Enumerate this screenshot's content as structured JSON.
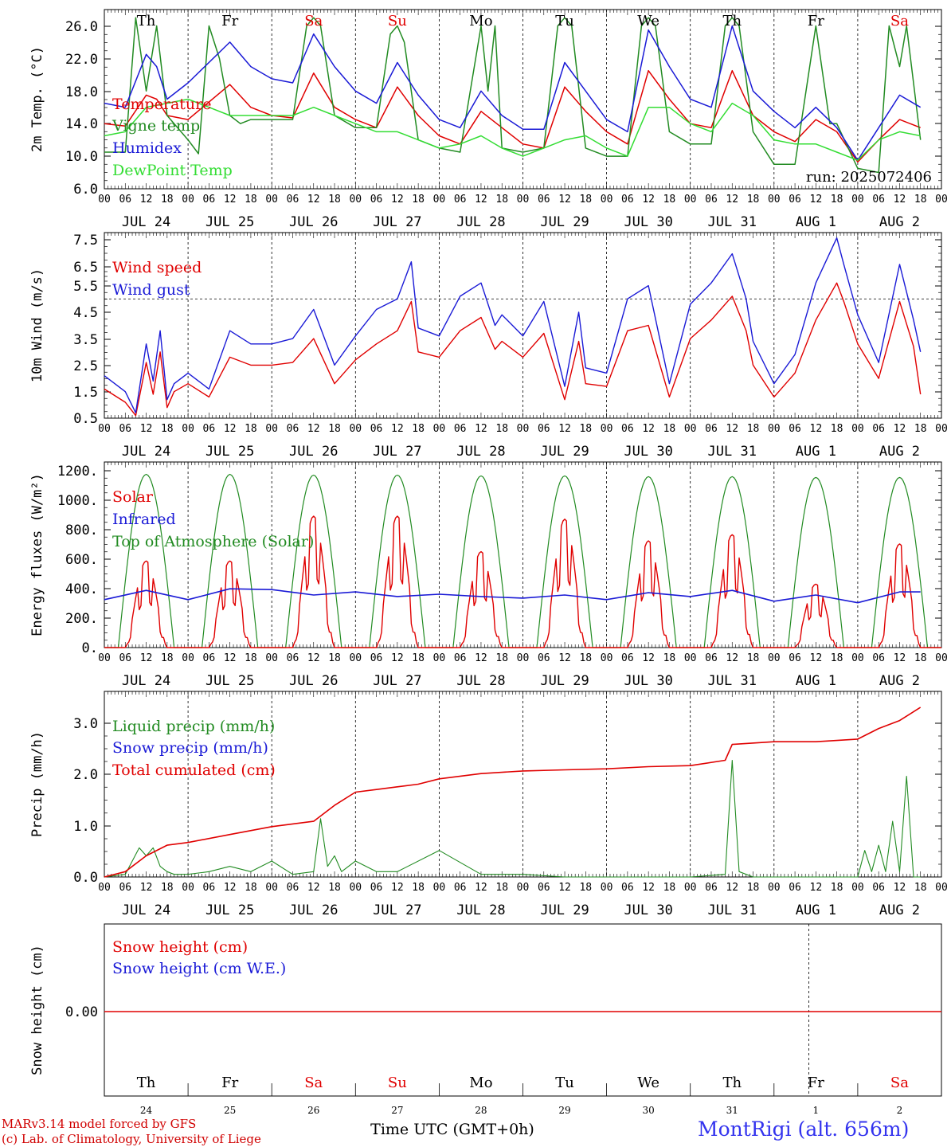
{
  "footer": {
    "credit_line1": "MARv3.14 model forced by GFS",
    "credit_line2": "(c) Lab. of Climatology, University of Liege",
    "time_axis_label": "Time UTC (GMT+0h)",
    "station": "MontRigi (alt. 656m)"
  },
  "chart_data": [
    {
      "type": "line",
      "id": "temperature",
      "ylabel": "2m Temp. (°C)",
      "ylim": [
        6,
        28
      ],
      "yticks": [
        "6.0",
        "10.0",
        "14.0",
        "18.0",
        "22.0",
        "26.0"
      ],
      "day_names": [
        "Th",
        "Fr",
        "Sa",
        "Su",
        "Mo",
        "Tu",
        "We",
        "Th",
        "Fr",
        "Sa"
      ],
      "day_name_colors": [
        "#000000",
        "#000000",
        "#e00000",
        "#e00000",
        "#000000",
        "#000000",
        "#000000",
        "#000000",
        "#000000",
        "#e00000"
      ],
      "hour_ticks": [
        "00",
        "06",
        "12",
        "18"
      ],
      "dates": [
        "JUL 24",
        "JUL 25",
        "JUL 26",
        "JUL 27",
        "JUL 28",
        "JUL 29",
        "JUL 30",
        "JUL 31",
        "AUG  1",
        "AUG  2"
      ],
      "annotation": "run: 2025072406",
      "x_unit": "hours since 2025-07-24 00 UTC",
      "series": [
        {
          "name": "Temperature",
          "color": "#e00000",
          "x": [
            0,
            6,
            12,
            15,
            18,
            24,
            36,
            42,
            48,
            54,
            60,
            66,
            72,
            78,
            84,
            90,
            96,
            102,
            108,
            114,
            120,
            126,
            132,
            138,
            144,
            150,
            156,
            162,
            168,
            174,
            180,
            186,
            192,
            198,
            204,
            210,
            216,
            222,
            228,
            234
          ],
          "y": [
            14,
            13.7,
            17.5,
            17,
            15,
            14.5,
            18.8,
            16,
            15,
            14.7,
            20.2,
            16,
            14.5,
            13.5,
            18.5,
            15,
            12.5,
            11.5,
            15.5,
            13.5,
            11.5,
            11,
            18.5,
            15.5,
            13,
            11.5,
            20.5,
            17,
            14,
            13.5,
            20.5,
            15,
            13,
            11.8,
            14.5,
            13,
            9.3,
            12,
            14.5,
            13.5
          ]
        },
        {
          "name": "Vigne temp",
          "color": "#228b22",
          "x": [
            0,
            6,
            9,
            12,
            15,
            18,
            24,
            27,
            30,
            33,
            36,
            39,
            42,
            48,
            54,
            58,
            60,
            62,
            66,
            72,
            78,
            82,
            84,
            86,
            90,
            96,
            102,
            108,
            110,
            112,
            114,
            120,
            126,
            130,
            132,
            134,
            138,
            144,
            150,
            154,
            156,
            158,
            162,
            168,
            174,
            178,
            180,
            182,
            186,
            192,
            198,
            204,
            208,
            210,
            216,
            222,
            225,
            228,
            230,
            234
          ],
          "y": [
            10.5,
            10.5,
            27,
            18,
            26,
            15,
            12,
            10.3,
            26,
            22,
            15,
            14,
            14.5,
            14.5,
            14.5,
            26,
            27,
            26,
            15,
            13.5,
            13.5,
            25,
            26,
            24,
            12,
            11,
            10.5,
            26,
            18,
            26,
            11,
            10.5,
            11,
            26,
            27,
            26,
            11,
            10,
            10,
            26,
            27,
            26,
            13,
            11.5,
            11.5,
            26,
            27,
            26,
            13,
            9,
            9,
            26,
            14,
            14,
            8.5,
            8,
            26,
            21,
            26,
            12
          ]
        },
        {
          "name": "Humidex",
          "color": "#1a1ad6",
          "x": [
            0,
            6,
            12,
            15,
            18,
            24,
            36,
            42,
            48,
            54,
            60,
            66,
            72,
            78,
            84,
            90,
            96,
            102,
            108,
            114,
            120,
            126,
            132,
            138,
            144,
            150,
            156,
            162,
            168,
            174,
            180,
            186,
            192,
            198,
            204,
            210,
            216,
            222,
            228,
            234
          ],
          "y": [
            16.5,
            16,
            22.5,
            21,
            17,
            19,
            24,
            21,
            19.5,
            19,
            25,
            21,
            18,
            16.5,
            21.5,
            17.5,
            14.5,
            13.5,
            18,
            15,
            13.3,
            13.3,
            21.5,
            18,
            14.5,
            13,
            25.5,
            21,
            17,
            16,
            26,
            18,
            15.5,
            13.5,
            16,
            13.5,
            9.5,
            13.5,
            17.5,
            16
          ]
        },
        {
          "name": "DewPoint Temp",
          "color": "#33dd33",
          "x": [
            0,
            6,
            12,
            18,
            24,
            30,
            36,
            42,
            48,
            54,
            60,
            66,
            72,
            78,
            84,
            90,
            96,
            102,
            108,
            114,
            120,
            126,
            132,
            138,
            144,
            150,
            156,
            162,
            168,
            174,
            180,
            186,
            192,
            198,
            204,
            210,
            216,
            222,
            228,
            234
          ],
          "y": [
            12.5,
            13,
            16,
            16.5,
            17,
            16,
            15,
            15,
            15,
            15,
            16,
            15,
            14,
            13,
            13,
            12,
            11,
            11.5,
            12.5,
            11,
            10,
            11,
            12,
            12.5,
            11,
            10,
            16,
            16,
            14,
            13,
            16.5,
            15,
            12,
            11.5,
            11.5,
            10.5,
            9.5,
            12,
            13,
            12.5
          ]
        }
      ]
    },
    {
      "type": "line",
      "id": "wind",
      "ylabel": "10m Wind (m/s)",
      "ylim": [
        0.5,
        7.5
      ],
      "yticks": [
        "0.5",
        "1.5",
        "2.5",
        "3.5",
        "4.5",
        "5.5",
        "6.5",
        "7.5"
      ],
      "hour_ticks": [
        "00",
        "06",
        "12",
        "18"
      ],
      "dates": [
        "JUL 24",
        "JUL 25",
        "JUL 26",
        "JUL 27",
        "JUL 28",
        "JUL 29",
        "JUL 30",
        "JUL 31",
        "AUG  1",
        "AUG  2"
      ],
      "reference_line": 5.0,
      "x_unit": "hours since 2025-07-24 00 UTC",
      "series": [
        {
          "name": "Wind speed",
          "color": "#e00000",
          "x": [
            0,
            6,
            9,
            12,
            14,
            16,
            18,
            20,
            24,
            30,
            36,
            42,
            48,
            54,
            60,
            66,
            72,
            78,
            84,
            88,
            90,
            96,
            102,
            108,
            112,
            114,
            120,
            126,
            132,
            136,
            138,
            144,
            150,
            156,
            162,
            168,
            174,
            180,
            184,
            186,
            192,
            198,
            204,
            210,
            212,
            216,
            222,
            228,
            232,
            234
          ],
          "y": [
            1.6,
            1.1,
            0.6,
            2.6,
            1.4,
            3.0,
            0.9,
            1.5,
            1.8,
            1.3,
            2.8,
            2.5,
            2.5,
            2.6,
            3.5,
            1.8,
            2.7,
            3.3,
            3.8,
            4.9,
            3.0,
            2.8,
            3.8,
            4.3,
            3.1,
            3.4,
            2.8,
            3.7,
            1.2,
            3.4,
            1.8,
            1.7,
            3.8,
            4.0,
            1.3,
            3.5,
            4.2,
            5.1,
            3.8,
            2.5,
            1.3,
            2.2,
            4.2,
            5.6,
            4.9,
            3.3,
            2.0,
            4.9,
            3.2,
            1.4
          ]
        },
        {
          "name": "Wind gust",
          "color": "#1a1ad6",
          "x": [
            0,
            6,
            9,
            12,
            14,
            16,
            18,
            20,
            24,
            30,
            36,
            42,
            48,
            54,
            60,
            66,
            72,
            78,
            84,
            88,
            90,
            96,
            102,
            108,
            112,
            114,
            120,
            126,
            132,
            136,
            138,
            144,
            150,
            156,
            162,
            168,
            174,
            180,
            184,
            186,
            192,
            198,
            204,
            210,
            212,
            216,
            222,
            228,
            232,
            234
          ],
          "y": [
            2.1,
            1.5,
            0.7,
            3.3,
            1.9,
            3.8,
            1.2,
            1.8,
            2.2,
            1.6,
            3.8,
            3.3,
            3.3,
            3.5,
            4.6,
            2.5,
            3.6,
            4.6,
            5.0,
            6.4,
            3.9,
            3.6,
            5.1,
            5.6,
            4.0,
            4.4,
            3.6,
            4.9,
            1.7,
            4.5,
            2.4,
            2.2,
            5.0,
            5.5,
            1.8,
            4.8,
            5.6,
            6.7,
            5.0,
            3.4,
            1.8,
            2.9,
            5.6,
            7.3,
            6.3,
            4.4,
            2.6,
            6.3,
            4.2,
            3.0
          ]
        }
      ]
    },
    {
      "type": "line",
      "id": "energy",
      "ylabel": "Energy fluxes (W/m²)",
      "ylim": [
        0,
        1200
      ],
      "yticks": [
        "0.",
        "200.",
        "400.",
        "600.",
        "800.",
        "1000.",
        "1200."
      ],
      "hour_ticks": [
        "00",
        "06",
        "12",
        "18"
      ],
      "dates": [
        "JUL 24",
        "JUL 25",
        "JUL 26",
        "JUL 27",
        "JUL 28",
        "JUL 29",
        "JUL 30",
        "JUL 31",
        "AUG  1",
        "AUG  2"
      ],
      "x_unit": "hours since 2025-07-24 00 UTC",
      "day_peaks": {
        "solar": [
          560,
          560,
          850,
          850,
          620,
          830,
          690,
          730,
          410,
          670
        ],
        "top_of_atmosphere": [
          1120,
          1120,
          1115,
          1115,
          1110,
          1110,
          1105,
          1105,
          1100,
          1100
        ]
      },
      "series": [
        {
          "name": "Solar",
          "color": "#e00000"
        },
        {
          "name": "Infrared",
          "color": "#1a1ad6",
          "x": [
            0,
            12,
            24,
            36,
            48,
            60,
            72,
            84,
            96,
            108,
            120,
            132,
            144,
            156,
            168,
            180,
            192,
            204,
            216,
            228,
            234
          ],
          "y": [
            310,
            370,
            310,
            380,
            375,
            340,
            360,
            330,
            345,
            330,
            320,
            340,
            310,
            355,
            330,
            370,
            300,
            340,
            290,
            360,
            360
          ]
        },
        {
          "name": "Top of Atmosphere (Solar)",
          "color": "#228b22"
        }
      ]
    },
    {
      "type": "line",
      "id": "precip",
      "ylabel": "Precip (mm/h)",
      "ylim": [
        0,
        3.5
      ],
      "yticks": [
        "0.0",
        "1.0",
        "2.0",
        "3.0"
      ],
      "hour_ticks": [
        "00",
        "06",
        "12",
        "18"
      ],
      "dates": [
        "JUL 24",
        "JUL 25",
        "JUL 26",
        "JUL 27",
        "JUL 28",
        "JUL 29",
        "JUL 30",
        "JUL 31",
        "AUG  1",
        "AUG  2"
      ],
      "x_unit": "hours since 2025-07-24 00 UTC",
      "series": [
        {
          "name": "Liquid precip (mm/h)",
          "color": "#228b22",
          "x": [
            0,
            6,
            10,
            12,
            14,
            16,
            18,
            20,
            24,
            30,
            36,
            42,
            48,
            54,
            60,
            62,
            64,
            66,
            68,
            72,
            78,
            84,
            96,
            108,
            120,
            132,
            144,
            156,
            168,
            178,
            180,
            182,
            186,
            192,
            204,
            210,
            216,
            218,
            220,
            222,
            224,
            226,
            228,
            230,
            232,
            234
          ],
          "y": [
            0,
            0.05,
            0.55,
            0.4,
            0.55,
            0.2,
            0.1,
            0.05,
            0.05,
            0.1,
            0.2,
            0.1,
            0.3,
            0.05,
            0.1,
            1.1,
            0.2,
            0.4,
            0.1,
            0.3,
            0.1,
            0.1,
            0.5,
            0.05,
            0.05,
            0,
            0,
            0,
            0,
            0.05,
            2.2,
            0.1,
            0,
            0,
            0,
            0,
            0,
            0.5,
            0.1,
            0.6,
            0.1,
            1.05,
            0.1,
            1.9,
            0,
            0
          ]
        },
        {
          "name": "Snow precip (mm/h)",
          "color": "#1a1ad6"
        },
        {
          "name": "Total cumulated (cm)",
          "color": "#e00000",
          "x": [
            0,
            6,
            12,
            18,
            24,
            36,
            48,
            54,
            60,
            66,
            72,
            78,
            84,
            90,
            96,
            108,
            120,
            132,
            144,
            156,
            168,
            178,
            180,
            192,
            204,
            216,
            222,
            228,
            234
          ],
          "y": [
            0,
            0.1,
            0.4,
            0.6,
            0.65,
            0.8,
            0.95,
            1.0,
            1.05,
            1.35,
            1.6,
            1.65,
            1.7,
            1.75,
            1.85,
            1.95,
            2.0,
            2.02,
            2.04,
            2.08,
            2.1,
            2.2,
            2.5,
            2.55,
            2.55,
            2.6,
            2.8,
            2.95,
            3.2
          ]
        }
      ]
    },
    {
      "type": "line",
      "id": "snow",
      "ylabel": "Snow height (cm)",
      "ytick": "0.00",
      "day_names": [
        "Th",
        "Fr",
        "Sa",
        "Su",
        "Mo",
        "Tu",
        "We",
        "Th",
        "Fr",
        "Sa"
      ],
      "day_name_colors": [
        "#000000",
        "#000000",
        "#e00000",
        "#e00000",
        "#000000",
        "#000000",
        "#000000",
        "#000000",
        "#000000",
        "#e00000"
      ],
      "day_numbers": [
        "24",
        "25",
        "26",
        "27",
        "28",
        "29",
        "30",
        "31",
        "1",
        "2"
      ],
      "series": [
        {
          "name": "Snow height (cm)",
          "color": "#e00000",
          "y": [
            0,
            0
          ]
        },
        {
          "name": "Snow height (cm W.E.)",
          "color": "#1a1ad6"
        }
      ]
    }
  ]
}
